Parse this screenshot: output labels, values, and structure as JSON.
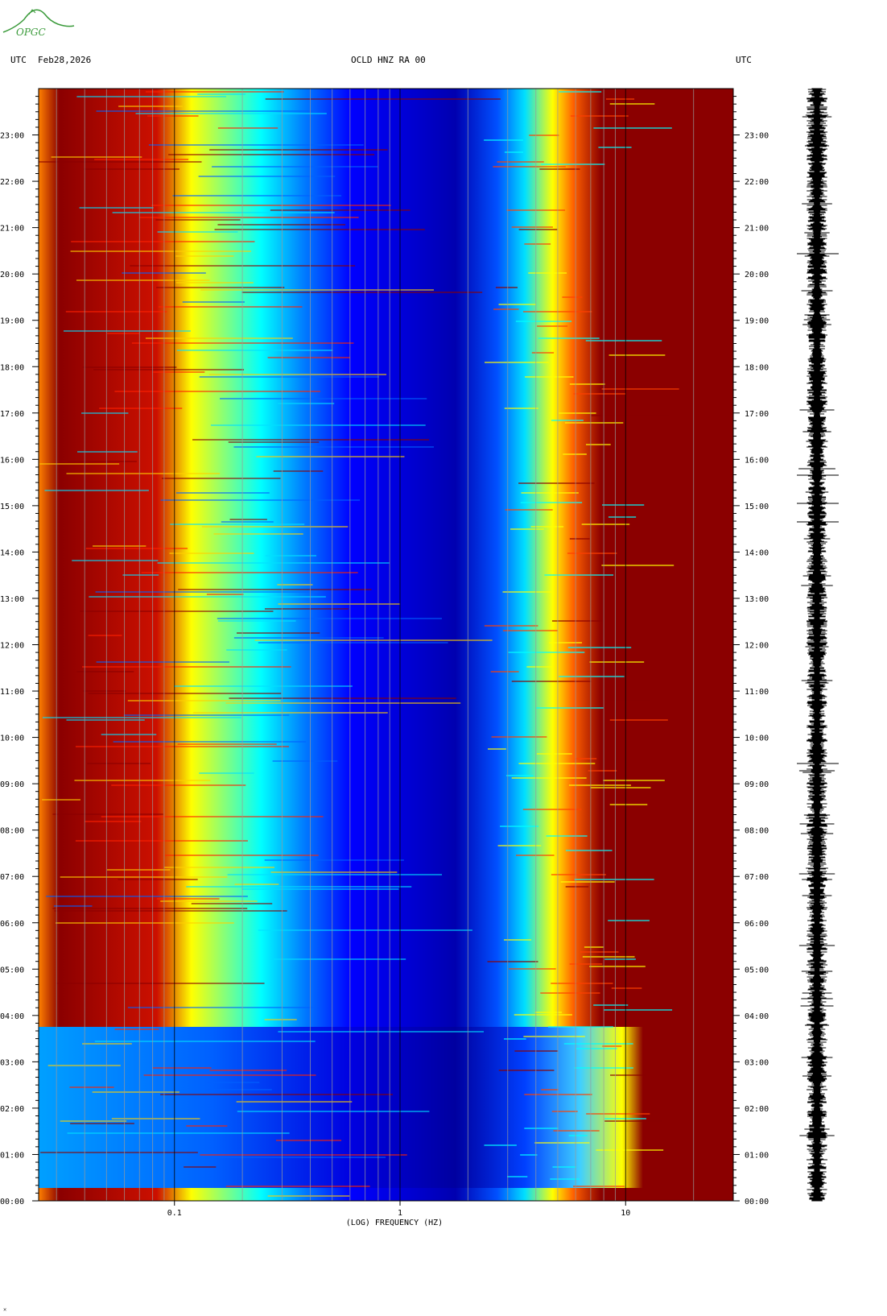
{
  "header": {
    "left_timezone": "UTC",
    "date": "Feb28,2026",
    "station": "OCLD HNZ RA 00",
    "right_timezone": "UTC"
  },
  "logo": {
    "text": "OPGC",
    "color": "#3a9a3a"
  },
  "chart_data": {
    "type": "heatmap",
    "title": "OCLD HNZ RA 00",
    "xlabel": "(LOG) FREQUENCY (HZ)",
    "x_scale": "log",
    "xlim": [
      0.025,
      30
    ],
    "x_tick_labels": [
      {
        "value": 0.1,
        "label": "0.1"
      },
      {
        "value": 1,
        "label": "1"
      },
      {
        "value": 10,
        "label": "10"
      }
    ],
    "x_gridlines": [
      0.03,
      0.04,
      0.05,
      0.06,
      0.07,
      0.08,
      0.09,
      0.1,
      0.2,
      0.3,
      0.4,
      0.5,
      0.6,
      0.7,
      0.8,
      0.9,
      1,
      2,
      3,
      4,
      5,
      6,
      7,
      8,
      9,
      10,
      20
    ],
    "ylim_hours": [
      0,
      24
    ],
    "y_tick_labels": [
      "00:00",
      "01:00",
      "02:00",
      "03:00",
      "04:00",
      "05:00",
      "06:00",
      "07:00",
      "08:00",
      "09:00",
      "10:00",
      "11:00",
      "12:00",
      "13:00",
      "14:00",
      "15:00",
      "16:00",
      "17:00",
      "18:00",
      "19:00",
      "20:00",
      "21:00",
      "22:00",
      "23:00"
    ],
    "colormap": [
      "#00008b",
      "#0000ff",
      "#0080ff",
      "#00ffff",
      "#80ff80",
      "#ffff00",
      "#ff8000",
      "#ff0000",
      "#8b0000"
    ],
    "time_trace": "seismogram",
    "grid": true
  }
}
